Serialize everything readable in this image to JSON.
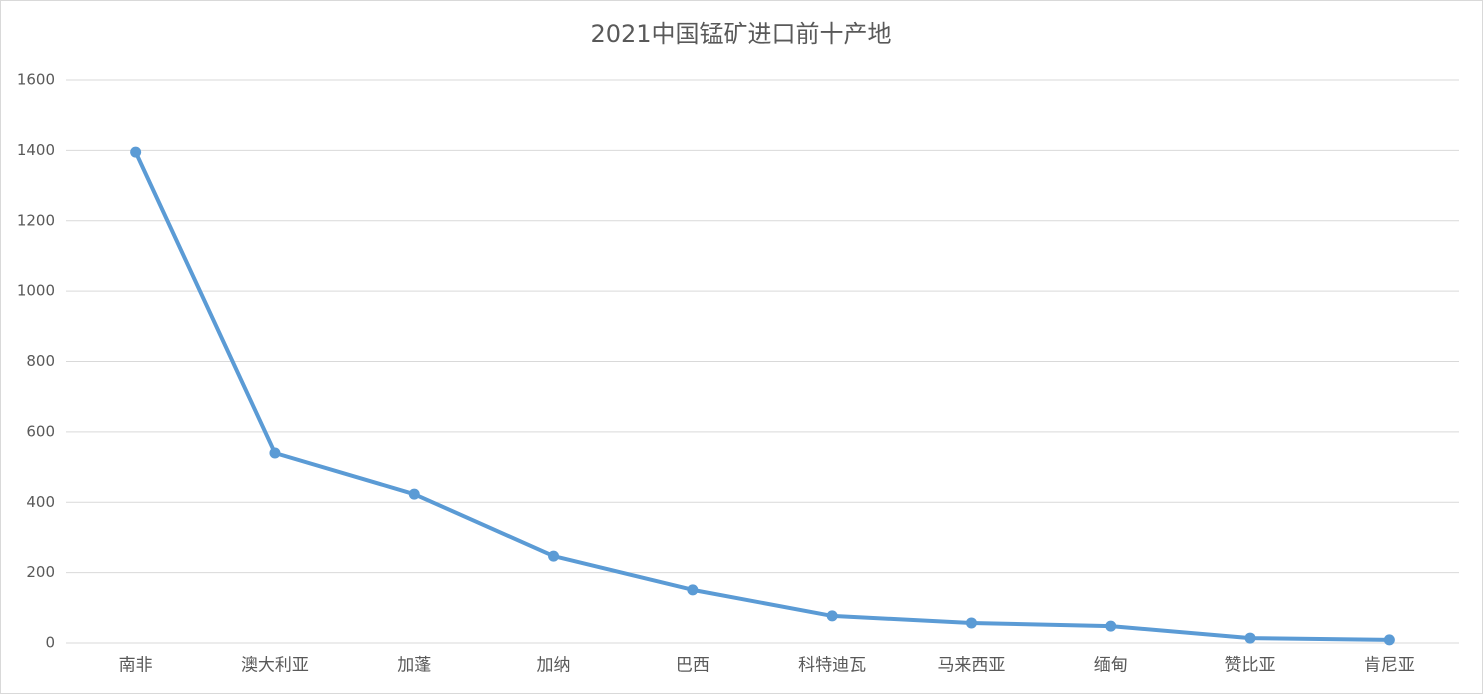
{
  "chart_data": {
    "type": "line",
    "title": "2021中国锰矿进口前十产地",
    "categories": [
      "南非",
      "澳大利亚",
      "加蓬",
      "加纳",
      "巴西",
      "科特迪瓦",
      "马来西亚",
      "缅甸",
      "赞比亚",
      "肯尼亚"
    ],
    "values": [
      1395,
      540,
      423,
      247,
      151,
      77,
      57,
      48,
      14,
      9
    ],
    "color": "#5b9bd5",
    "ylim": [
      0,
      1600
    ],
    "yticks": [
      0,
      200,
      400,
      600,
      800,
      1000,
      1200,
      1400,
      1600
    ],
    "grid": true
  }
}
